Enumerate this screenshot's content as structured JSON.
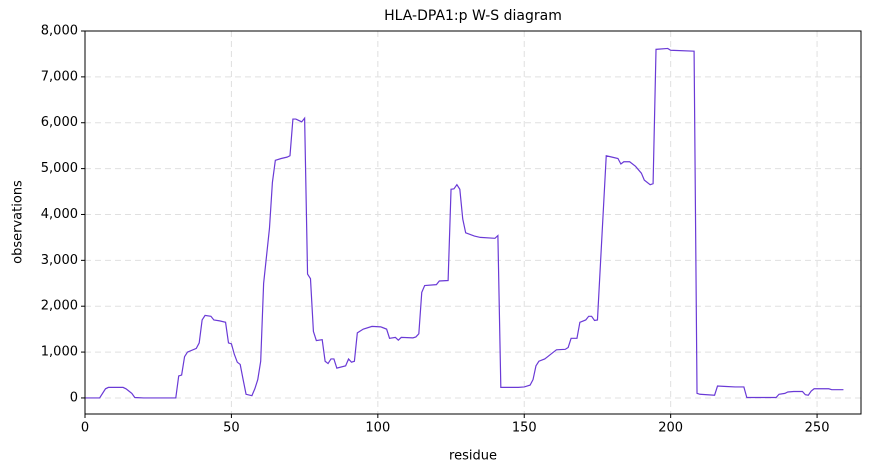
{
  "chart_data": {
    "type": "line",
    "title": "HLA-DPA1:p W-S diagram",
    "x_label": "residue",
    "y_label": "observations",
    "x": [
      0,
      5,
      7,
      8,
      13,
      14,
      16,
      17,
      20,
      31,
      32,
      33,
      34,
      35,
      38,
      39,
      40,
      41,
      43,
      44,
      46,
      48,
      49,
      50,
      51,
      52,
      53,
      54,
      55,
      57,
      58,
      59,
      60,
      61,
      63,
      64,
      65,
      67,
      69,
      70,
      71,
      72,
      74,
      75,
      76,
      77,
      78,
      79,
      81,
      82,
      83,
      84,
      85,
      86,
      89,
      90,
      91,
      92,
      93,
      95,
      98,
      101,
      103,
      104,
      106,
      107,
      108,
      112,
      113,
      114,
      115,
      116,
      120,
      121,
      124,
      125,
      126,
      127,
      128,
      129,
      130,
      133,
      135,
      140,
      141,
      142,
      148,
      150,
      152,
      153,
      154,
      155,
      157,
      158,
      160,
      161,
      164,
      165,
      166,
      168,
      169,
      171,
      172,
      173,
      174,
      175,
      178,
      180,
      182,
      183,
      184,
      186,
      188,
      190,
      191,
      193,
      194,
      195,
      199,
      200,
      208,
      209,
      210,
      215,
      216,
      219,
      222,
      225,
      226,
      236,
      237,
      239,
      240,
      242,
      245,
      246,
      247,
      248,
      249,
      252,
      254,
      255,
      259
    ],
    "values": [
      0,
      0,
      200,
      230,
      230,
      200,
      100,
      10,
      0,
      0,
      480,
      500,
      900,
      1000,
      1080,
      1200,
      1700,
      1800,
      1780,
      1700,
      1680,
      1650,
      1200,
      1180,
      950,
      780,
      730,
      400,
      80,
      50,
      200,
      400,
      800,
      2500,
      3700,
      4700,
      5180,
      5220,
      5250,
      5280,
      6080,
      6080,
      6020,
      6100,
      2700,
      2600,
      1450,
      1250,
      1270,
      800,
      750,
      850,
      850,
      650,
      700,
      850,
      780,
      800,
      1420,
      1500,
      1560,
      1550,
      1500,
      1300,
      1320,
      1260,
      1320,
      1310,
      1330,
      1400,
      2300,
      2450,
      2470,
      2550,
      2560,
      4550,
      4560,
      4650,
      4550,
      3900,
      3600,
      3530,
      3500,
      3480,
      3540,
      230,
      230,
      240,
      280,
      400,
      700,
      800,
      850,
      900,
      1000,
      1050,
      1060,
      1100,
      1300,
      1300,
      1650,
      1700,
      1780,
      1780,
      1690,
      1700,
      5280,
      5250,
      5220,
      5100,
      5150,
      5150,
      5050,
      4900,
      4750,
      4650,
      4670,
      7600,
      7620,
      7580,
      7560,
      100,
      80,
      60,
      260,
      250,
      240,
      240,
      10,
      10,
      80,
      100,
      130,
      140,
      140,
      70,
      60,
      150,
      200,
      200,
      200,
      180,
      180
    ],
    "color": "#6a3ad6",
    "xlim": [
      0,
      265
    ],
    "ylim": [
      -350,
      8000
    ],
    "xticks": [
      0,
      50,
      100,
      150,
      200,
      250
    ],
    "yticks": [
      0,
      {
        "value": 1000,
        "label": "1,000"
      },
      {
        "value": 2000,
        "label": "2,000"
      },
      {
        "value": 3000,
        "label": "3,000"
      },
      {
        "value": 4000,
        "label": "4,000"
      },
      {
        "value": 5000,
        "label": "5,000"
      },
      {
        "value": 6000,
        "label": "6,000"
      },
      {
        "value": 7000,
        "label": "7,000"
      },
      {
        "value": 8000,
        "label": "8,000"
      }
    ],
    "grid": true
  }
}
